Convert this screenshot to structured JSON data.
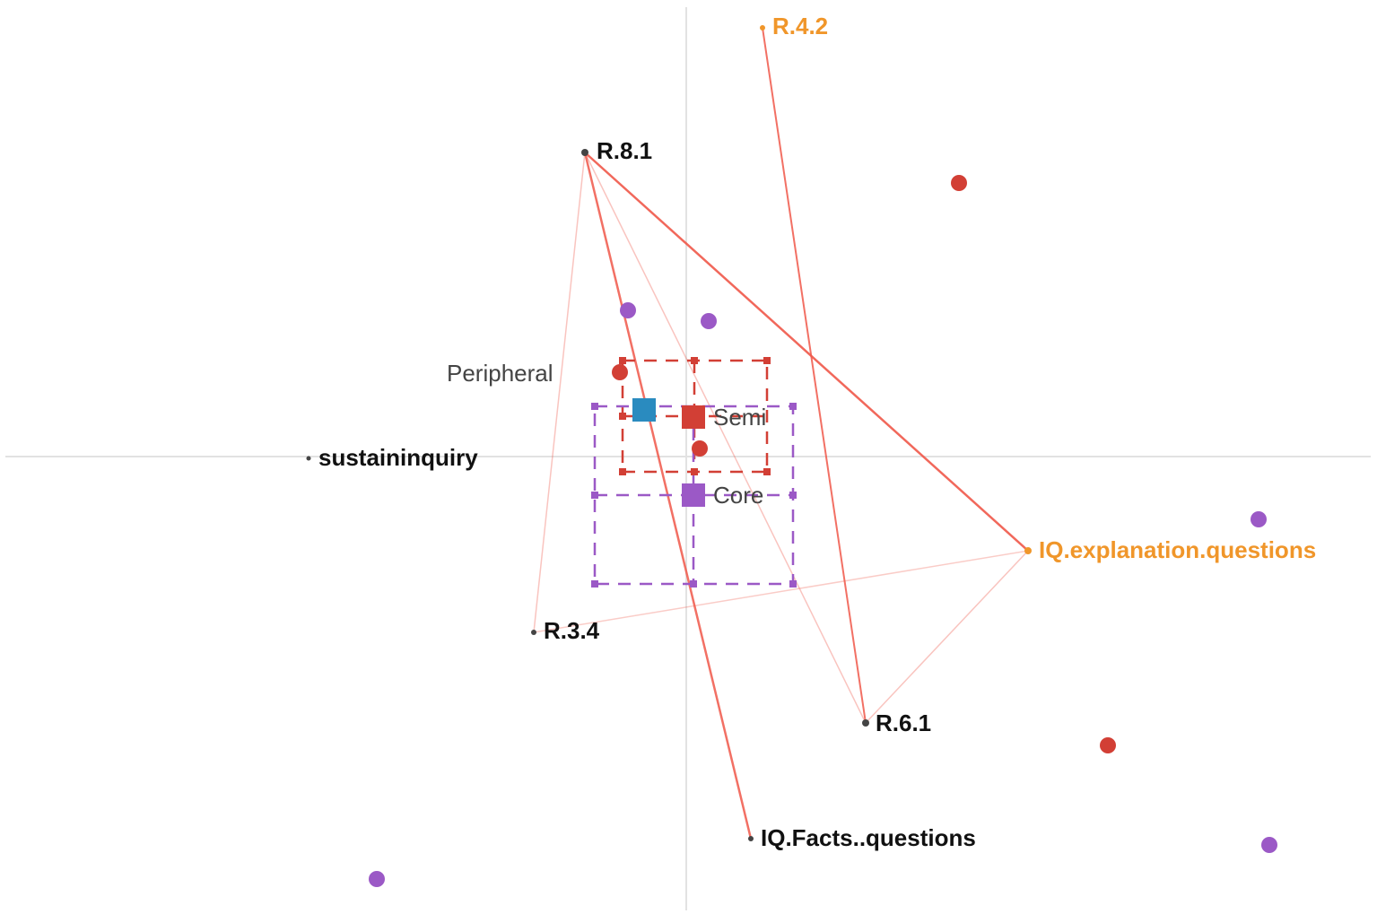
{
  "nodes": [
    {
      "label": "R.4.2"
    },
    {
      "label": "R.8.1"
    },
    {
      "label": "sustaininquiry"
    },
    {
      "label": "R.3.4"
    },
    {
      "label": "R.6.1"
    },
    {
      "label": "IQ.Facts..questions"
    },
    {
      "label": "IQ.explanation.questions"
    }
  ],
  "groups": [
    {
      "label": "Peripheral"
    },
    {
      "label": "Semi"
    },
    {
      "label": "Core"
    }
  ]
}
